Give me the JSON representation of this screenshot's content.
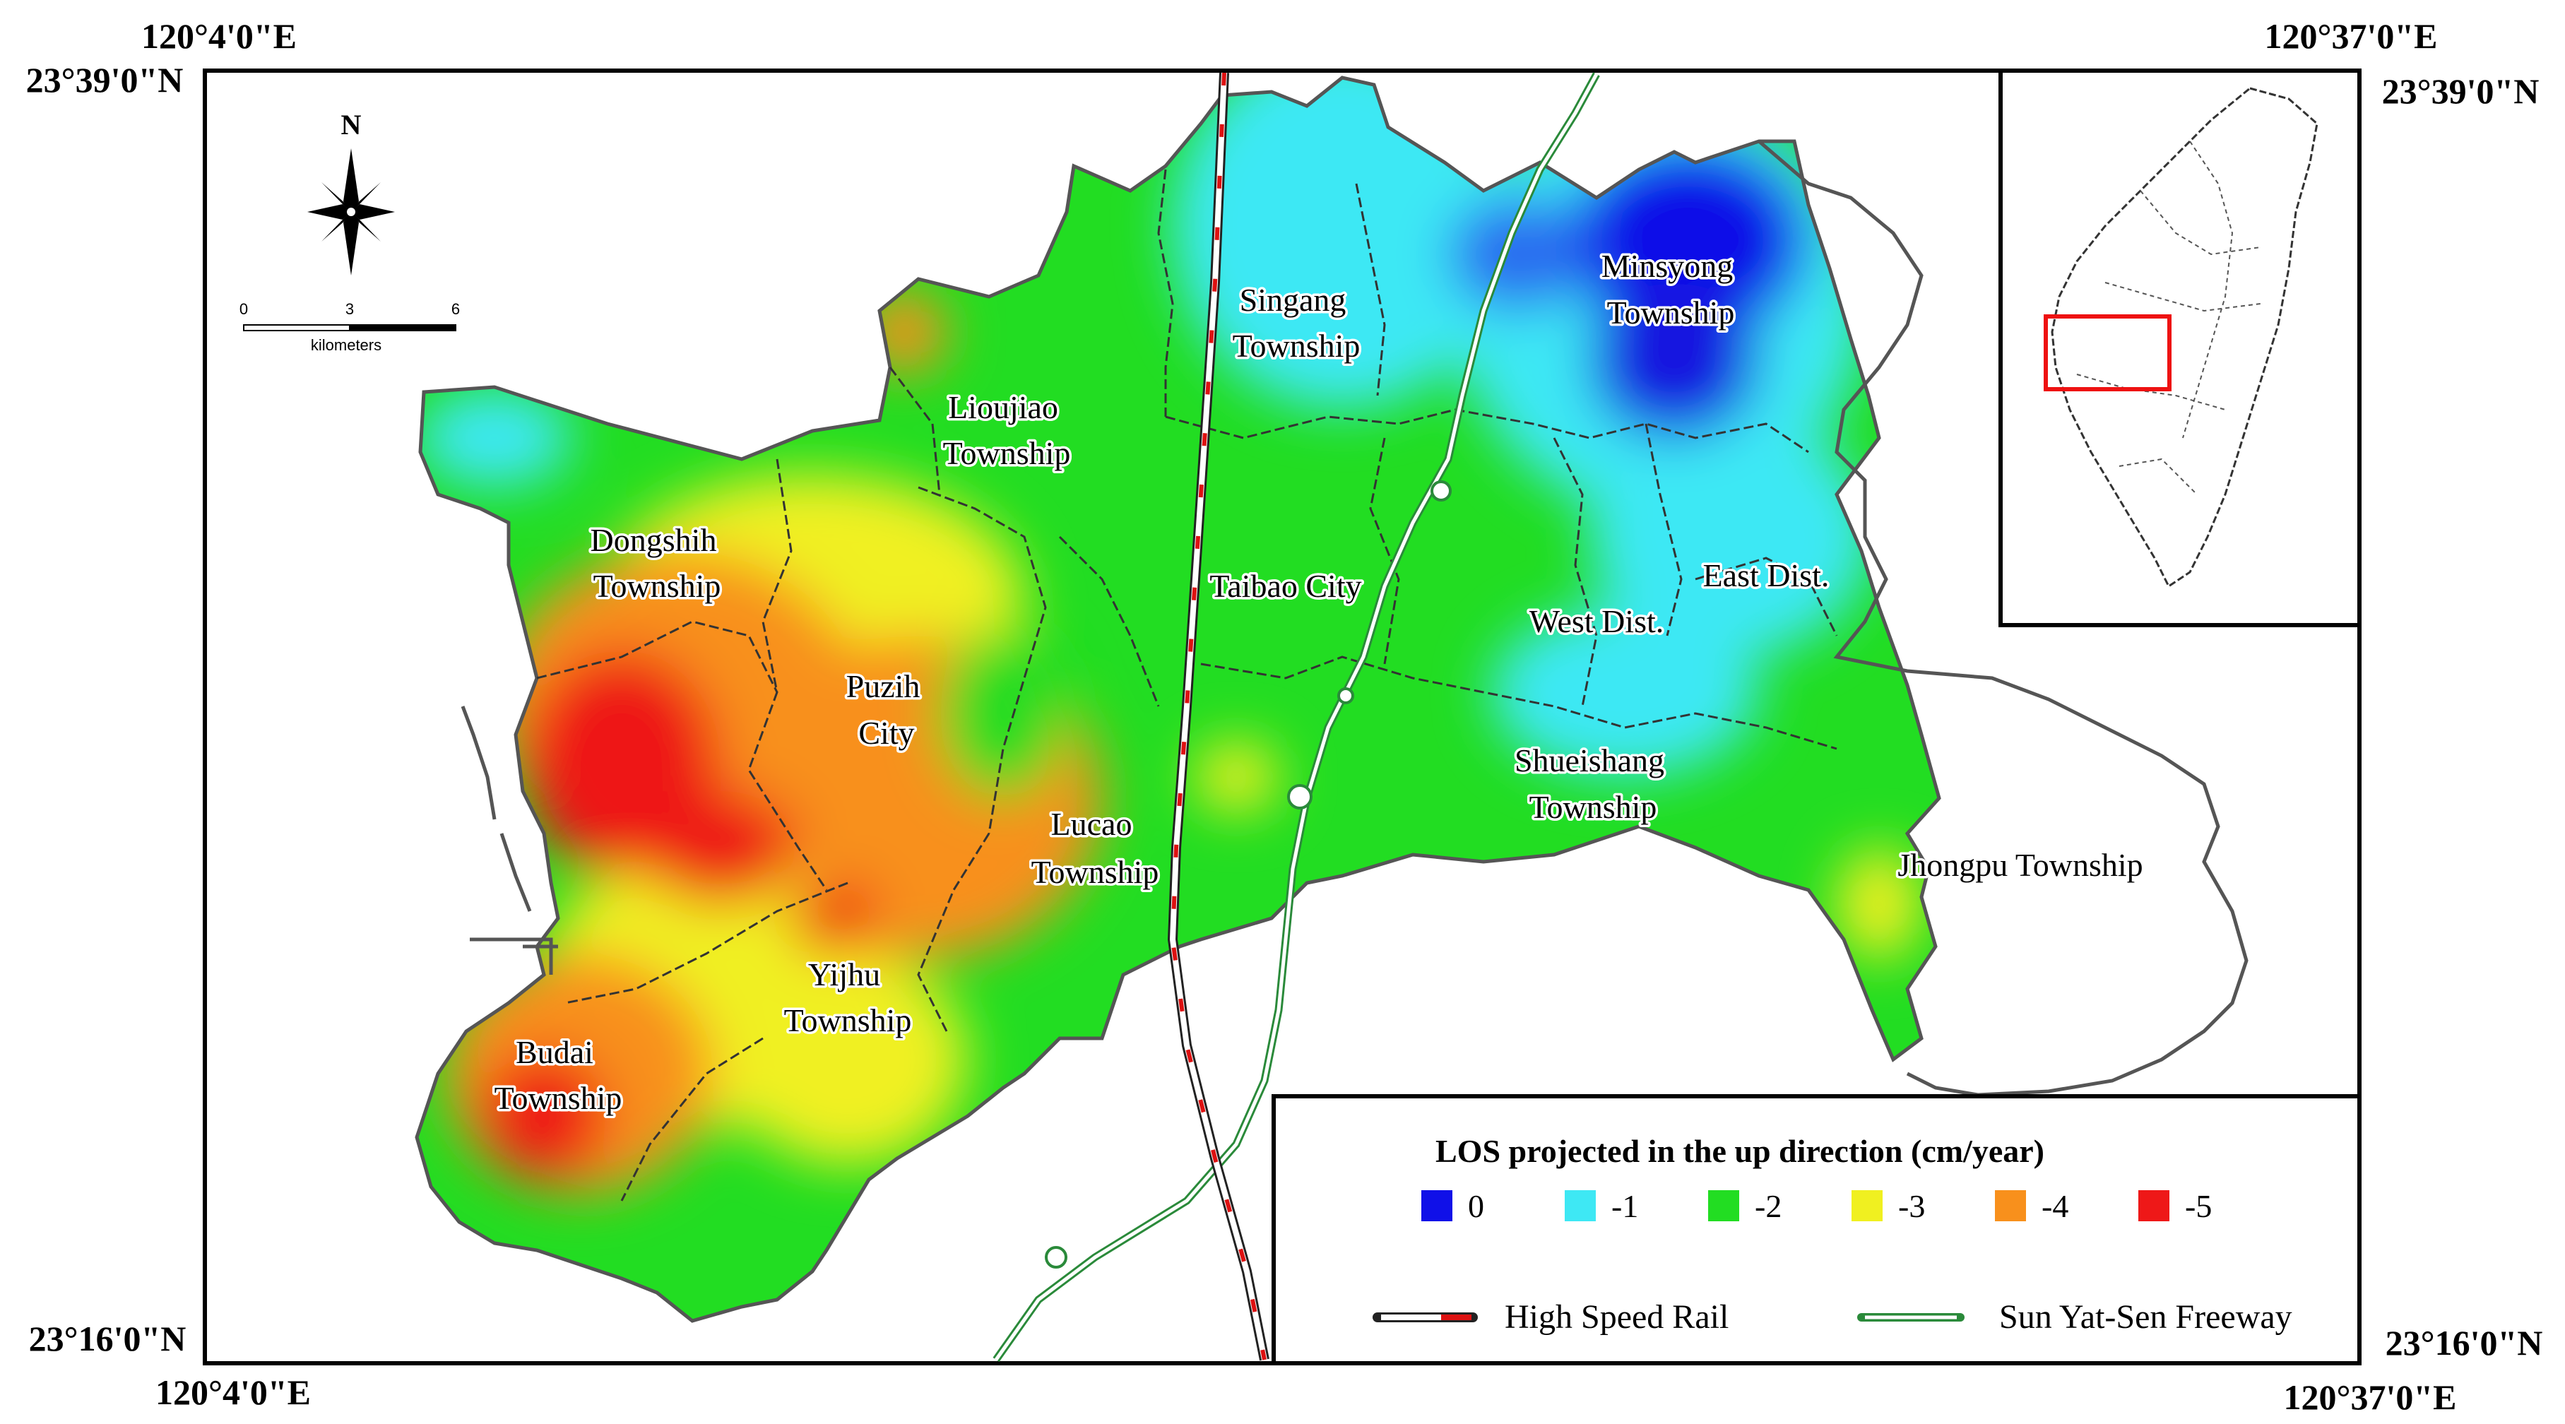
{
  "coordinates": {
    "top_left_lon": "120°4'0\"E",
    "top_left_lat": "23°39'0\"N",
    "top_right_lon": "120°37'0\"E",
    "top_right_lat": "23°39'0\"N",
    "bottom_left_lat": "23°16'0\"N",
    "bottom_left_lon": "120°4'0\"E",
    "bottom_right_lat": "23°16'0\"N",
    "bottom_right_lon": "120°37'0\"E"
  },
  "compass": {
    "north_label": "N",
    "icon": "compass-rose-icon"
  },
  "scale_bar": {
    "ticks": [
      "0",
      "3",
      "6"
    ],
    "unit": "kilometers"
  },
  "places": {
    "singang_1": "Singang",
    "singang_2": "Township",
    "minsyong_1": "Minsyong",
    "minsyong_2": "Township",
    "lioujiao_1": "Lioujiao",
    "lioujiao_2": "Township",
    "dongshih_1": "Dongshih",
    "dongshih_2": "Township",
    "taibao": "Taibao City",
    "east": "East Dist.",
    "west": "West Dist.",
    "puzih_1": "Puzih",
    "puzih_2": "City",
    "shueishang_1": "Shueishang",
    "shueishang_2": "Township",
    "lucao_1": "Lucao",
    "lucao_2": "Township",
    "jhongpu": "Jhongpu Township",
    "yijhu_1": "Yijhu",
    "yijhu_2": "Township",
    "budai_1": "Budai",
    "budai_2": "Township"
  },
  "legend": {
    "title": "LOS projected in the up direction (cm/year)",
    "classes": [
      {
        "label": "0",
        "color": "#1010e8"
      },
      {
        "label": "-1",
        "color": "#3ee8f4"
      },
      {
        "label": "-2",
        "color": "#22dd22"
      },
      {
        "label": "-3",
        "color": "#f0f020"
      },
      {
        "label": "-4",
        "color": "#f8901c"
      },
      {
        "label": "-5",
        "color": "#ee1818"
      }
    ],
    "rail_label": "High Speed Rail",
    "freeway_label": "Sun Yat-Sen Freeway"
  },
  "colors": {
    "rail_red": "#dd1111",
    "freeway_green": "#2a8a3a",
    "inset_box": "#ee1111"
  }
}
